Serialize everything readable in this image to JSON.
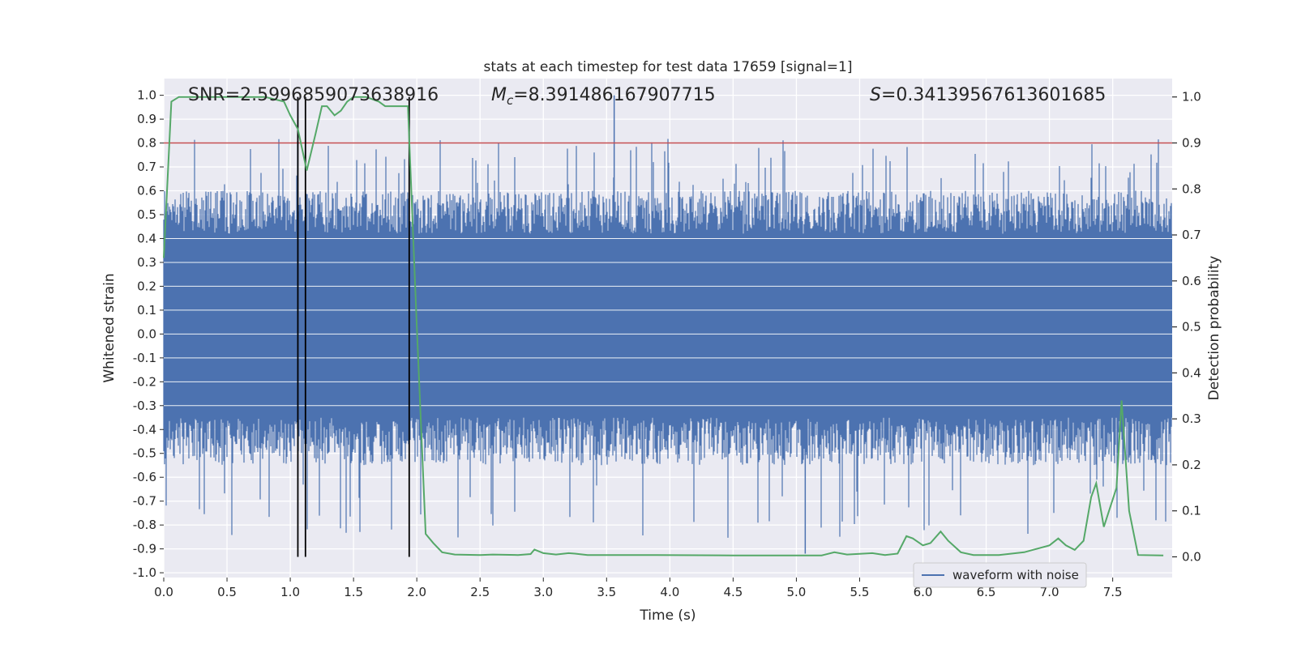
{
  "chart_data": {
    "type": "line",
    "title": "stats at each timestep for test data 17659 [signal=1]",
    "xlabel": "Time (s)",
    "ylabel": "Whitened strain",
    "y2label": "Detection probability",
    "xlim": [
      0.0,
      7.97
    ],
    "ylim": [
      -1.02,
      1.07
    ],
    "y2lim": [
      -0.045,
      1.04
    ],
    "x_ticks": [
      "0.0",
      "0.5",
      "1.0",
      "1.5",
      "2.0",
      "2.5",
      "3.0",
      "3.5",
      "4.0",
      "4.5",
      "5.0",
      "5.5",
      "6.0",
      "6.5",
      "7.0",
      "7.5"
    ],
    "y_ticks": [
      "-1.0",
      "-0.9",
      "-0.8",
      "-0.7",
      "-0.6",
      "-0.5",
      "-0.4",
      "-0.3",
      "-0.2",
      "-0.1",
      "0.0",
      "0.1",
      "0.2",
      "0.3",
      "0.4",
      "0.5",
      "0.6",
      "0.7",
      "0.8",
      "0.9",
      "1.0"
    ],
    "y2_ticks": [
      "0.0",
      "0.1",
      "0.2",
      "0.3",
      "0.4",
      "0.5",
      "0.6",
      "0.7",
      "0.8",
      "0.9",
      "1.0"
    ],
    "grid": true,
    "legend_position": "lower-right",
    "annotations": {
      "snr": "SNR=2.5996859073638916",
      "mc_symbol": "M",
      "mc_sub": "c",
      "mc_value": "=8.391486167907715",
      "s_symbol": "S",
      "s_value": "=0.34139567613601685"
    },
    "series": [
      {
        "name": "waveform with noise",
        "axis": "left",
        "color": "#4c72b0",
        "kind": "noise",
        "description_envelope": {
          "t_start": 0.0,
          "t_end": 7.97,
          "dense_band": [
            -0.35,
            0.42
          ],
          "typical_peak": 0.6,
          "typical_trough": -0.55,
          "max": 1.0,
          "min": -0.92
        }
      },
      {
        "axis": "right",
        "color": "#55a868",
        "kind": "probability",
        "x": [
          0.0,
          0.06,
          0.12,
          0.2,
          0.4,
          0.6,
          0.8,
          0.95,
          1.0,
          1.06,
          1.13,
          1.2,
          1.25,
          1.29,
          1.35,
          1.4,
          1.45,
          1.5,
          1.6,
          1.7,
          1.75,
          1.8,
          1.93,
          2.0,
          2.07,
          2.13,
          2.2,
          2.3,
          2.5,
          2.6,
          2.8,
          2.9,
          2.93,
          3.0,
          3.1,
          3.2,
          3.25,
          3.35,
          3.5,
          3.9,
          4.5,
          5.0,
          5.2,
          5.3,
          5.4,
          5.6,
          5.7,
          5.8,
          5.87,
          5.92,
          6.0,
          6.06,
          6.14,
          6.2,
          6.3,
          6.4,
          6.6,
          6.8,
          7.0,
          7.07,
          7.13,
          7.2,
          7.27,
          7.33,
          7.37,
          7.43,
          7.53,
          7.57,
          7.63,
          7.7,
          7.9
        ],
        "values": [
          0.65,
          0.99,
          1.0,
          1.0,
          1.0,
          1.0,
          1.0,
          0.99,
          0.96,
          0.93,
          0.84,
          0.92,
          0.98,
          0.98,
          0.96,
          0.97,
          0.99,
          1.0,
          1.0,
          0.99,
          0.98,
          0.98,
          0.98,
          0.5,
          0.05,
          0.03,
          0.01,
          0.005,
          0.004,
          0.005,
          0.004,
          0.006,
          0.016,
          0.008,
          0.005,
          0.008,
          0.007,
          0.004,
          0.004,
          0.004,
          0.003,
          0.003,
          0.003,
          0.01,
          0.005,
          0.008,
          0.004,
          0.007,
          0.045,
          0.04,
          0.025,
          0.03,
          0.055,
          0.035,
          0.01,
          0.004,
          0.004,
          0.01,
          0.025,
          0.04,
          0.025,
          0.015,
          0.035,
          0.13,
          0.16,
          0.065,
          0.15,
          0.34,
          0.1,
          0.004,
          0.003
        ]
      }
    ],
    "threshold_line": {
      "axis": "right",
      "value": 0.9,
      "color": "#c44e52"
    },
    "vertical_markers": {
      "x": [
        1.06,
        1.12,
        1.94
      ],
      "color": "#000000"
    }
  }
}
